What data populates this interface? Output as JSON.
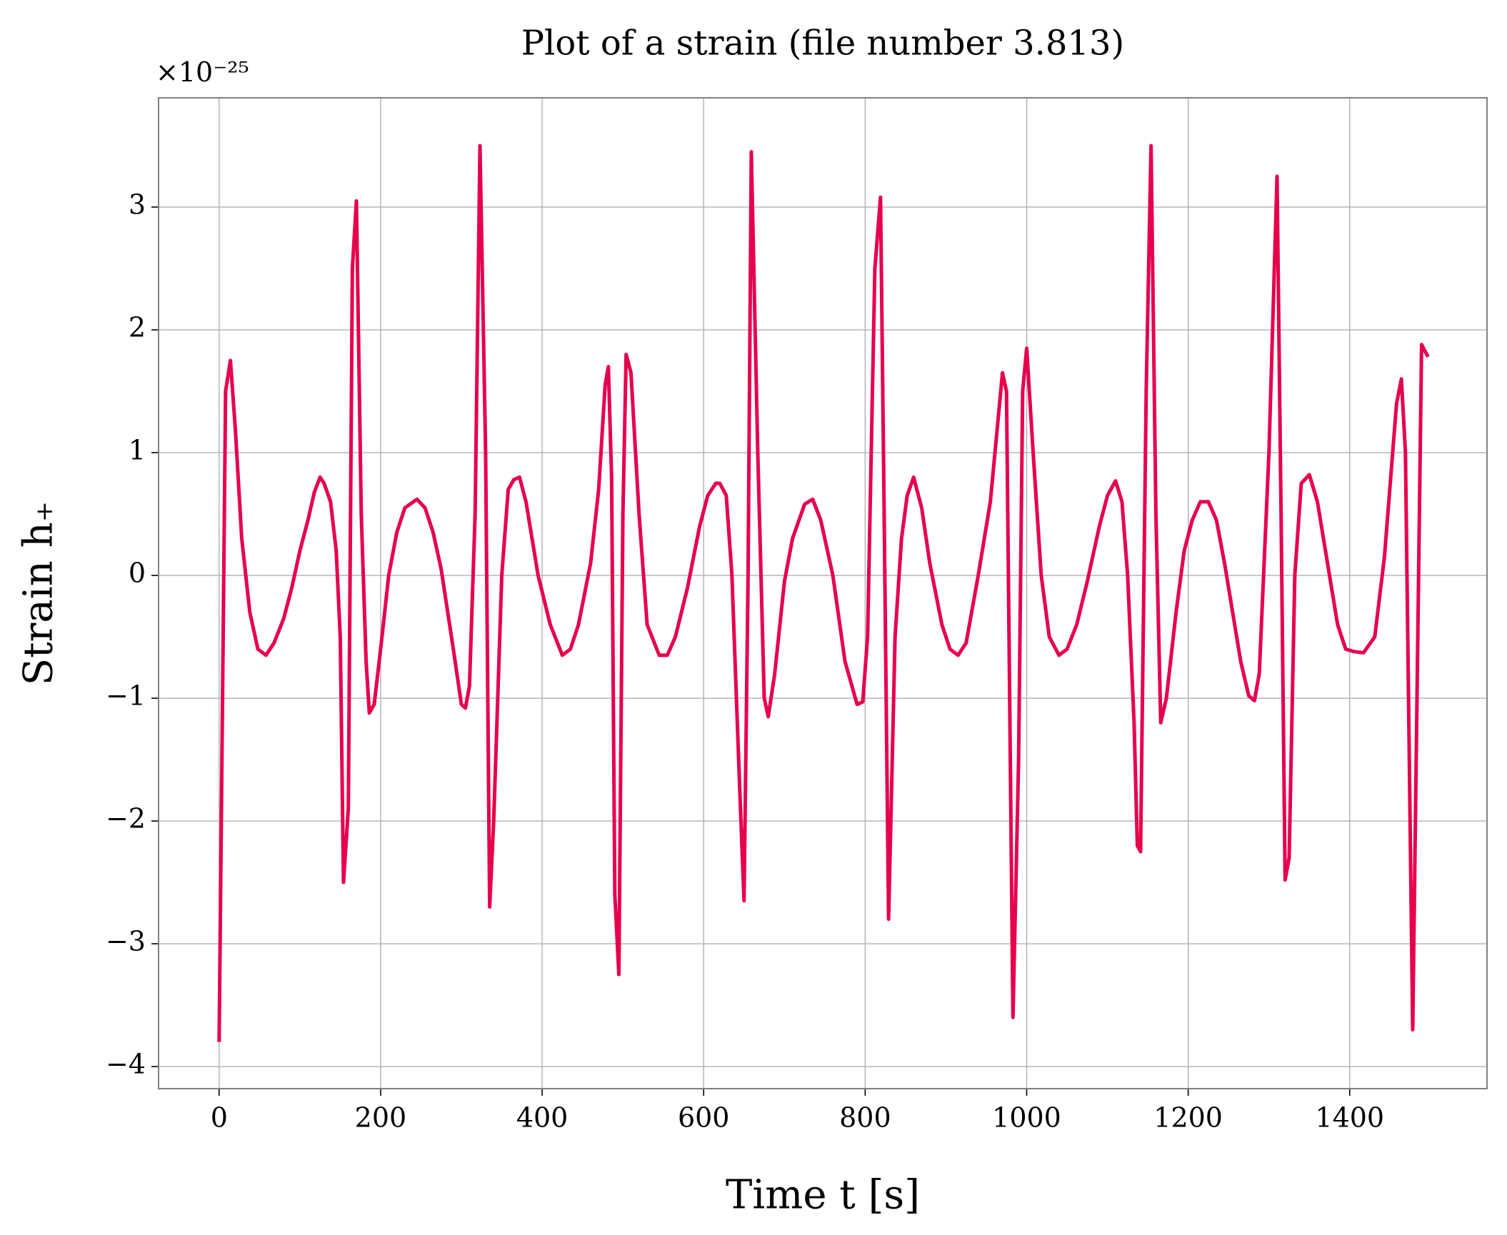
{
  "chart_data": {
    "type": "line",
    "title": "Plot of a strain (file number 3.813)",
    "xlabel": "Time t [s]",
    "ylabel": "Strain h₊",
    "offset_label": "×10⁻²⁵",
    "color": "#e6004c",
    "grid": true,
    "xlim": [
      -75,
      1570
    ],
    "ylim": [
      -4.18,
      3.89
    ],
    "xticks": [
      0,
      200,
      400,
      600,
      800,
      1000,
      1200,
      1400
    ],
    "yticks": [
      -4,
      -3,
      -2,
      -1,
      0,
      1,
      2,
      3
    ],
    "x": [
      0,
      8,
      14,
      20,
      28,
      38,
      48,
      58,
      68,
      80,
      90,
      100,
      110,
      118,
      125,
      130,
      138,
      145,
      150,
      154,
      160,
      165,
      170,
      176,
      182,
      186,
      192,
      200,
      210,
      220,
      230,
      245,
      255,
      265,
      275,
      290,
      300,
      305,
      310,
      317,
      323,
      330,
      335,
      340,
      350,
      358,
      365,
      372,
      380,
      395,
      410,
      425,
      435,
      445,
      460,
      470,
      478,
      482,
      486,
      490,
      495,
      500,
      504,
      510,
      520,
      530,
      545,
      555,
      565,
      580,
      595,
      605,
      615,
      620,
      628,
      635,
      645,
      650,
      655,
      659,
      667,
      675,
      680,
      688,
      700,
      710,
      725,
      735,
      745,
      760,
      775,
      790,
      797,
      803,
      812,
      819,
      823,
      829,
      837,
      845,
      852,
      860,
      870,
      880,
      895,
      905,
      915,
      925,
      940,
      955,
      965,
      970,
      975,
      983,
      990,
      995,
      1000,
      1008,
      1018,
      1028,
      1040,
      1050,
      1062,
      1075,
      1090,
      1100,
      1110,
      1118,
      1125,
      1133,
      1137,
      1141,
      1148,
      1154,
      1160,
      1166,
      1173,
      1185,
      1195,
      1205,
      1215,
      1225,
      1235,
      1245,
      1255,
      1265,
      1275,
      1282,
      1288,
      1300,
      1310,
      1315,
      1320,
      1325,
      1332,
      1340,
      1350,
      1360,
      1370,
      1385,
      1395,
      1405,
      1417,
      1431,
      1443,
      1458,
      1464,
      1469,
      1478,
      1489,
      1497
    ],
    "values": [
      -3.8,
      1.5,
      1.75,
      1.2,
      0.3,
      -0.3,
      -0.6,
      -0.65,
      -0.55,
      -0.35,
      -0.1,
      0.2,
      0.45,
      0.68,
      0.8,
      0.75,
      0.6,
      0.2,
      -0.5,
      -2.5,
      -1.9,
      2.5,
      3.05,
      0.5,
      -0.7,
      -1.12,
      -1.05,
      -0.6,
      0.0,
      0.35,
      0.55,
      0.62,
      0.55,
      0.35,
      0.05,
      -0.6,
      -1.05,
      -1.08,
      -0.9,
      0.5,
      3.5,
      1.0,
      -2.7,
      -2.0,
      0.0,
      0.7,
      0.78,
      0.8,
      0.6,
      0.0,
      -0.4,
      -0.65,
      -0.6,
      -0.4,
      0.1,
      0.7,
      1.55,
      1.7,
      0.8,
      -2.6,
      -3.25,
      0.5,
      1.8,
      1.65,
      0.5,
      -0.4,
      -0.65,
      -0.65,
      -0.5,
      -0.1,
      0.4,
      0.65,
      0.75,
      0.75,
      0.65,
      0.0,
      -1.8,
      -2.65,
      0.0,
      3.45,
      1.0,
      -1.0,
      -1.15,
      -0.8,
      -0.05,
      0.3,
      0.58,
      0.62,
      0.45,
      0.0,
      -0.7,
      -1.05,
      -1.03,
      -0.5,
      2.5,
      3.08,
      0.8,
      -2.8,
      -0.5,
      0.3,
      0.65,
      0.8,
      0.55,
      0.1,
      -0.4,
      -0.6,
      -0.65,
      -0.55,
      0.0,
      0.6,
      1.3,
      1.65,
      1.5,
      -3.6,
      -1.5,
      1.5,
      1.85,
      1.0,
      0.0,
      -0.5,
      -0.65,
      -0.6,
      -0.4,
      -0.05,
      0.4,
      0.65,
      0.77,
      0.6,
      0.0,
      -1.2,
      -2.2,
      -2.25,
      1.5,
      3.5,
      0.5,
      -1.2,
      -1.0,
      -0.3,
      0.2,
      0.45,
      0.6,
      0.6,
      0.45,
      0.1,
      -0.3,
      -0.7,
      -0.98,
      -1.02,
      -0.8,
      1.0,
      3.25,
      0.5,
      -2.48,
      -2.3,
      0.0,
      0.75,
      0.82,
      0.6,
      0.2,
      -0.4,
      -0.6,
      -0.62,
      -0.63,
      -0.5,
      0.15,
      1.4,
      1.6,
      1.0,
      -3.7,
      1.88,
      1.78
    ]
  }
}
